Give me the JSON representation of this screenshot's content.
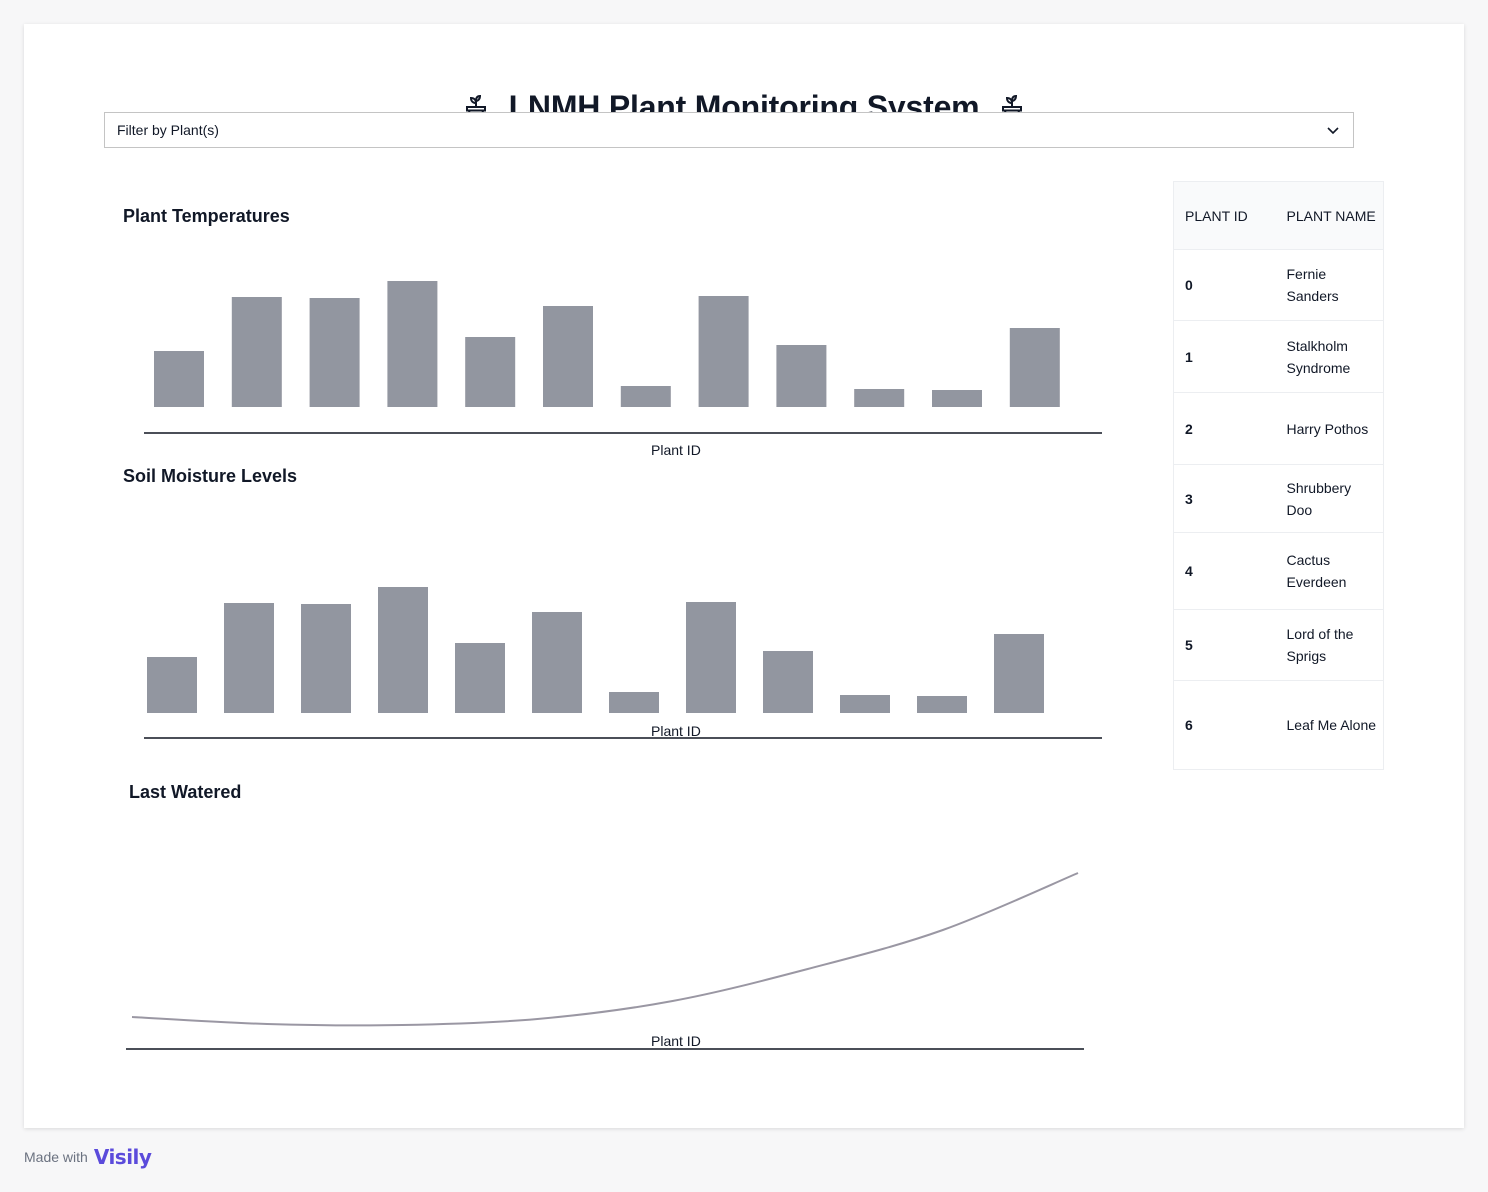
{
  "header": {
    "title": "LNMH Plant Monitoring System"
  },
  "filter": {
    "label": "Filter by Plant(s)"
  },
  "charts": {
    "temperature": {
      "title": "Plant Temperatures",
      "xlabel": "Plant ID"
    },
    "moisture": {
      "title": "Soil Moisture Levels",
      "xlabel": "Plant ID"
    },
    "watered": {
      "title": "Last Watered",
      "xlabel": "Plant ID"
    }
  },
  "chart_data": [
    {
      "type": "bar",
      "title": "Plant Temperatures",
      "xlabel": "Plant ID",
      "ylabel": "",
      "values": [
        56,
        110,
        109,
        126,
        70,
        101,
        21,
        111,
        62,
        18,
        17,
        79
      ],
      "ylim": [
        0,
        130
      ],
      "grid": false,
      "color": "#9296a0"
    },
    {
      "type": "bar",
      "title": "Soil Moisture Levels",
      "xlabel": "Plant ID",
      "ylabel": "",
      "values": [
        56,
        110,
        109,
        126,
        70,
        101,
        21,
        111,
        62,
        18,
        17,
        79
      ],
      "ylim": [
        0,
        130
      ],
      "grid": false,
      "color": "#9296a0"
    },
    {
      "type": "line",
      "title": "Last Watered",
      "xlabel": "Plant ID",
      "ylabel": "",
      "values": [
        25,
        18,
        17,
        23,
        41,
        73,
        112,
        169
      ],
      "ylim": [
        0,
        180
      ],
      "grid": false,
      "color": "#9a97a3"
    }
  ],
  "table": {
    "headers": {
      "id": "PLANT ID",
      "name": "PLANT NAME"
    },
    "rows": [
      {
        "id": "0",
        "name": "Fernie Sanders"
      },
      {
        "id": "1",
        "name": "Stalkholm Syndrome"
      },
      {
        "id": "2",
        "name": "Harry Pothos"
      },
      {
        "id": "3",
        "name": "Shrubbery Doo"
      },
      {
        "id": "4",
        "name": "Cactus Everdeen"
      },
      {
        "id": "5",
        "name": "Lord of the Sprigs"
      },
      {
        "id": "6",
        "name": "Leaf Me Alone"
      }
    ]
  },
  "footer": {
    "made_with": "Made with",
    "brand": "Visily"
  },
  "icons": {
    "title_left": "potted-plant-icon",
    "title_right": "potted-plant-icon",
    "filter_caret": "chevron-down-icon"
  }
}
